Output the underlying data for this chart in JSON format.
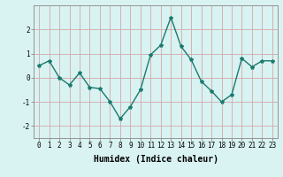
{
  "x": [
    0,
    1,
    2,
    3,
    4,
    5,
    6,
    7,
    8,
    9,
    10,
    11,
    12,
    13,
    14,
    15,
    16,
    17,
    18,
    19,
    20,
    21,
    22,
    23
  ],
  "y": [
    0.5,
    0.7,
    0.0,
    -0.3,
    0.2,
    -0.4,
    -0.45,
    -1.0,
    -1.7,
    -1.2,
    -0.5,
    0.95,
    1.35,
    2.5,
    1.3,
    0.75,
    -0.15,
    -0.55,
    -1.0,
    -0.7,
    0.8,
    0.45,
    0.7,
    0.7
  ],
  "line_color": "#1a7a6e",
  "marker": "*",
  "marker_size": 3,
  "bg_color": "#d9f2f2",
  "grid_color": "#d4a8a8",
  "xlabel": "Humidex (Indice chaleur)",
  "ylim": [
    -2.5,
    3.0
  ],
  "xlim": [
    -0.5,
    23.5
  ],
  "yticks": [
    -2,
    -1,
    0,
    1,
    2
  ],
  "xticks": [
    0,
    1,
    2,
    3,
    4,
    5,
    6,
    7,
    8,
    9,
    10,
    11,
    12,
    13,
    14,
    15,
    16,
    17,
    18,
    19,
    20,
    21,
    22,
    23
  ],
  "xtick_labels": [
    "0",
    "1",
    "2",
    "3",
    "4",
    "5",
    "6",
    "7",
    "8",
    "9",
    "10",
    "11",
    "12",
    "13",
    "14",
    "15",
    "16",
    "17",
    "18",
    "19",
    "20",
    "21",
    "22",
    "23"
  ],
  "tick_fontsize": 5.5,
  "xlabel_fontsize": 7,
  "line_width": 1.0
}
